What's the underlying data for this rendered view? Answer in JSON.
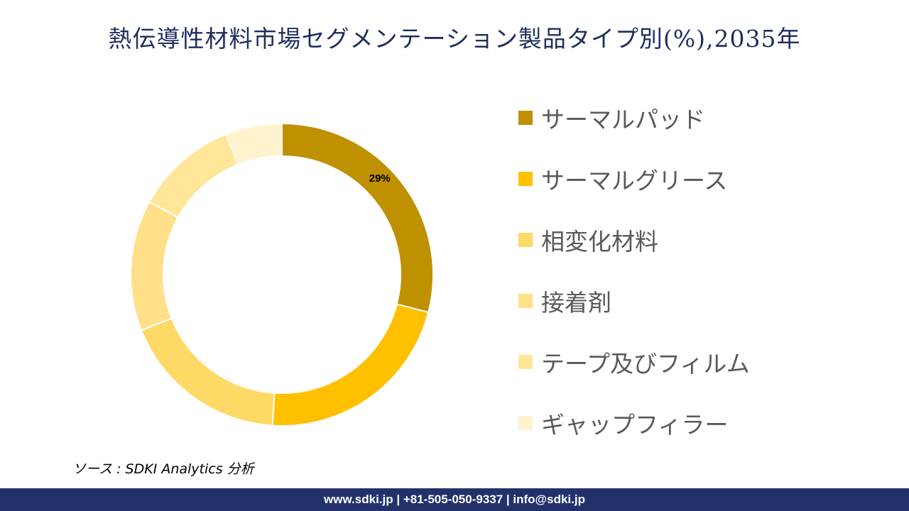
{
  "title": "熱伝導性材料市場セグメンテーション製品タイプ別(%),2035年",
  "chart_data": {
    "type": "pie",
    "variant": "donut",
    "title": "熱伝導性材料市場セグメンテーション製品タイプ別(%),2035年",
    "categories": [
      "サーマルパッド",
      "サーマルグリース",
      "相変化材料",
      "接着剤",
      "テープ及びフィルム",
      "ギャップフィラー"
    ],
    "values": [
      29,
      22,
      18,
      14,
      11,
      6
    ],
    "colors": [
      "#BF9000",
      "#FFC000",
      "#FFD966",
      "#FFDF88",
      "#FFE699",
      "#FFF2CC"
    ],
    "data_labels": [
      {
        "category": "サーマルパッド",
        "text": "29%"
      }
    ],
    "legend_position": "right"
  },
  "source": "ソース : SDKI Analytics 分析",
  "footer": "www.sdki.jp | +81-505-050-9337 | info@sdki.jp"
}
